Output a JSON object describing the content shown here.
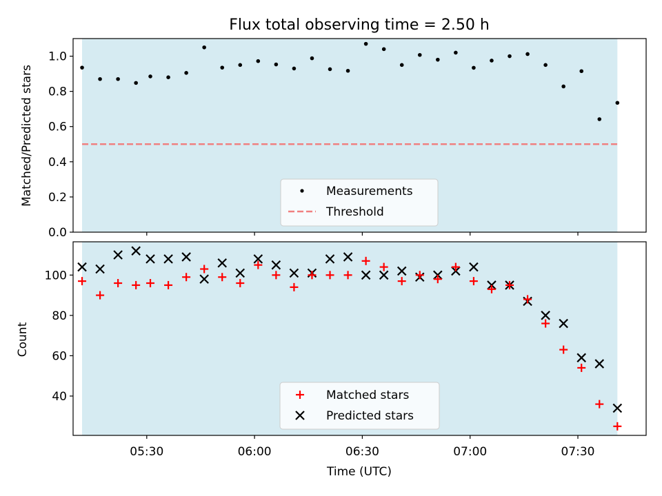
{
  "chart_data": [
    {
      "type": "scatter",
      "title": "Flux total observing time = 2.50 h",
      "ylabel": "Matched/Predicted stars",
      "xlabel": "",
      "xlim": [
        "05:09:30",
        "07:49:00"
      ],
      "ylim": [
        0,
        1.1
      ],
      "yticks": [
        "0.0",
        "0.2",
        "0.4",
        "0.6",
        "0.8",
        "1.0"
      ],
      "shaded_span": [
        "05:12:00",
        "07:41:00"
      ],
      "legend": {
        "placement": "lower-center",
        "entries": [
          "Measurements",
          "Threshold"
        ]
      },
      "threshold": 0.5,
      "series": [
        {
          "name": "Measurements",
          "x": [
            "05:12",
            "05:17",
            "05:22",
            "05:27",
            "05:31",
            "05:36",
            "05:41",
            "05:46",
            "05:51",
            "05:56",
            "06:01",
            "06:06",
            "06:11",
            "06:16",
            "06:21",
            "06:26",
            "06:31",
            "06:36",
            "06:41",
            "06:46",
            "06:51",
            "06:56",
            "07:01",
            "07:06",
            "07:11",
            "07:16",
            "07:21",
            "07:26",
            "07:31",
            "07:36",
            "07:41"
          ],
          "y": [
            0.935,
            0.87,
            0.87,
            0.848,
            0.885,
            0.88,
            0.905,
            1.05,
            0.935,
            0.95,
            0.972,
            0.953,
            0.93,
            0.988,
            0.926,
            0.917,
            1.07,
            1.04,
            0.95,
            1.007,
            0.98,
            1.02,
            0.934,
            0.975,
            1.0,
            1.012,
            0.95,
            0.828,
            0.915,
            0.642,
            0.735
          ]
        }
      ],
      "colors": {
        "measurements": "#000000",
        "threshold": "#f08080",
        "span": "#add8e6"
      }
    },
    {
      "type": "scatter",
      "title": "",
      "ylabel": "Count",
      "xlabel": "Time (UTC)",
      "xlim": [
        "05:09:30",
        "07:49:00"
      ],
      "ylim": [
        20.5,
        116.5
      ],
      "yticks": [
        "40",
        "60",
        "80",
        "100"
      ],
      "xticks": [
        "05:30",
        "06:00",
        "06:30",
        "07:00",
        "07:30"
      ],
      "shaded_span": [
        "05:12:00",
        "07:41:00"
      ],
      "legend": {
        "placement": "lower-center",
        "entries": [
          "Matched stars",
          "Predicted stars"
        ]
      },
      "series": [
        {
          "name": "Matched stars",
          "x": [
            "05:12",
            "05:17",
            "05:22",
            "05:27",
            "05:31",
            "05:36",
            "05:41",
            "05:46",
            "05:51",
            "05:56",
            "06:01",
            "06:06",
            "06:11",
            "06:16",
            "06:21",
            "06:26",
            "06:31",
            "06:36",
            "06:41",
            "06:46",
            "06:51",
            "06:56",
            "07:01",
            "07:06",
            "07:11",
            "07:16",
            "07:21",
            "07:26",
            "07:31",
            "07:36",
            "07:41"
          ],
          "y": [
            97,
            90,
            96,
            95,
            96,
            95,
            99,
            103,
            99,
            96,
            105,
            100,
            94,
            100,
            100,
            100,
            107,
            104,
            97,
            100,
            98,
            104,
            97,
            93,
            95,
            88,
            76,
            63,
            54,
            36,
            25
          ]
        },
        {
          "name": "Predicted stars",
          "x": [
            "05:12",
            "05:17",
            "05:22",
            "05:27",
            "05:31",
            "05:36",
            "05:41",
            "05:46",
            "05:51",
            "05:56",
            "06:01",
            "06:06",
            "06:11",
            "06:16",
            "06:21",
            "06:26",
            "06:31",
            "06:36",
            "06:41",
            "06:46",
            "06:51",
            "06:56",
            "07:01",
            "07:06",
            "07:11",
            "07:16",
            "07:21",
            "07:26",
            "07:31",
            "07:36",
            "07:41"
          ],
          "y": [
            104,
            103,
            110,
            112,
            108,
            108,
            109,
            98,
            106,
            101,
            108,
            105,
            101,
            101,
            108,
            109,
            100,
            100,
            102,
            99,
            100,
            102,
            104,
            95,
            95,
            87,
            80,
            76,
            59,
            56,
            34
          ]
        }
      ],
      "colors": {
        "matched": "#ff0000",
        "predicted": "#000000",
        "span": "#add8e6"
      }
    }
  ]
}
